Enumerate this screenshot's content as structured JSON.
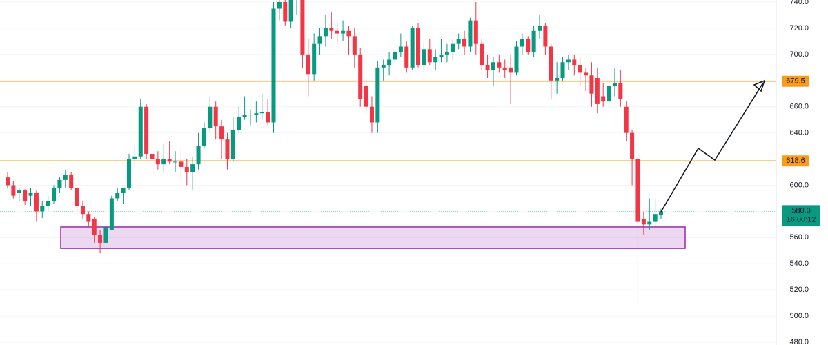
{
  "chart_data": {
    "type": "candlestick",
    "ylim": [
      477.9,
      741.6
    ],
    "yticks": [
      {
        "value": 480,
        "label": "480.0"
      },
      {
        "value": 500,
        "label": "500.0"
      },
      {
        "value": 520,
        "label": "520.0"
      },
      {
        "value": 540,
        "label": "540.0"
      },
      {
        "value": 560,
        "label": "560.0"
      },
      {
        "value": 580,
        "label": "580.0"
      },
      {
        "value": 600,
        "label": "600.0"
      },
      {
        "value": 620,
        "label": "620.0"
      },
      {
        "value": 640,
        "label": "640.0"
      },
      {
        "value": 660,
        "label": "660.0"
      },
      {
        "value": 680,
        "label": "680.0"
      },
      {
        "value": 700,
        "label": "700.0"
      },
      {
        "value": 720,
        "label": "720.0"
      },
      {
        "value": 740,
        "label": "740.0"
      }
    ],
    "up_color": "#089981",
    "down_color": "#f23645",
    "candles": [
      [
        606,
        610,
        598,
        600
      ],
      [
        600,
        603,
        590,
        592
      ],
      [
        594,
        598,
        588,
        596
      ],
      [
        596,
        597,
        585,
        588
      ],
      [
        592,
        598,
        584,
        594
      ],
      [
        594,
        596,
        572,
        580
      ],
      [
        580,
        588,
        575,
        584
      ],
      [
        584,
        592,
        580,
        588
      ],
      [
        588,
        600,
        586,
        598
      ],
      [
        598,
        606,
        594,
        604
      ],
      [
        604,
        612,
        598,
        608
      ],
      [
        608,
        610,
        596,
        598
      ],
      [
        598,
        600,
        578,
        584
      ],
      [
        584,
        588,
        574,
        578
      ],
      [
        578,
        580,
        568,
        572
      ],
      [
        574,
        576,
        556,
        562
      ],
      [
        562,
        566,
        548,
        556
      ],
      [
        556,
        570,
        544,
        568
      ],
      [
        566,
        592,
        566,
        590
      ],
      [
        590,
        598,
        588,
        594
      ],
      [
        594,
        598,
        586,
        598
      ],
      [
        598,
        624,
        596,
        620
      ],
      [
        620,
        630,
        614,
        622
      ],
      [
        622,
        666,
        620,
        660
      ],
      [
        660,
        662,
        620,
        624
      ],
      [
        624,
        630,
        610,
        620
      ],
      [
        620,
        626,
        612,
        616
      ],
      [
        616,
        632,
        610,
        620
      ],
      [
        620,
        634,
        616,
        618
      ],
      [
        618,
        626,
        610,
        618
      ],
      [
        618,
        628,
        604,
        614
      ],
      [
        614,
        620,
        600,
        610
      ],
      [
        610,
        622,
        596,
        616
      ],
      [
        616,
        640,
        612,
        630
      ],
      [
        630,
        648,
        628,
        644
      ],
      [
        644,
        668,
        640,
        660
      ],
      [
        660,
        664,
        635,
        645
      ],
      [
        645,
        650,
        620,
        635
      ],
      [
        635,
        640,
        612,
        620
      ],
      [
        620,
        652,
        618,
        642
      ],
      [
        642,
        660,
        640,
        652
      ],
      [
        652,
        668,
        650,
        654
      ],
      [
        654,
        658,
        646,
        654
      ],
      [
        654,
        664,
        648,
        655
      ],
      [
        655,
        670,
        650,
        656
      ],
      [
        656,
        666,
        646,
        648
      ],
      [
        648,
        740,
        640,
        735
      ],
      [
        735,
        742,
        726,
        740
      ],
      [
        740,
        744,
        722,
        725
      ],
      [
        725,
        748,
        720,
        742
      ],
      [
        742,
        750,
        730,
        745
      ],
      [
        745,
        750,
        690,
        700
      ],
      [
        700,
        712,
        668,
        685
      ],
      [
        685,
        716,
        680,
        708
      ],
      [
        708,
        720,
        700,
        714
      ],
      [
        714,
        730,
        706,
        720
      ],
      [
        720,
        732,
        712,
        718
      ],
      [
        718,
        724,
        708,
        716
      ],
      [
        716,
        726,
        710,
        718
      ],
      [
        718,
        722,
        700,
        714
      ],
      [
        714,
        720,
        690,
        700
      ],
      [
        700,
        705,
        660,
        666
      ],
      [
        676,
        682,
        655,
        660
      ],
      [
        660,
        668,
        640,
        648
      ],
      [
        648,
        695,
        640,
        690
      ],
      [
        690,
        696,
        680,
        692
      ],
      [
        692,
        702,
        684,
        696
      ],
      [
        696,
        710,
        690,
        702
      ],
      [
        702,
        716,
        698,
        706
      ],
      [
        706,
        710,
        686,
        690
      ],
      [
        690,
        722,
        688,
        720
      ],
      [
        720,
        724,
        690,
        692
      ],
      [
        692,
        708,
        686,
        704
      ],
      [
        704,
        712,
        692,
        694
      ],
      [
        694,
        704,
        688,
        698
      ],
      [
        698,
        712,
        694,
        700
      ],
      [
        700,
        708,
        694,
        702
      ],
      [
        702,
        712,
        696,
        708
      ],
      [
        708,
        716,
        704,
        712
      ],
      [
        712,
        718,
        700,
        706
      ],
      [
        706,
        728,
        702,
        726
      ],
      [
        726,
        740,
        700,
        708
      ],
      [
        708,
        712,
        688,
        692
      ],
      [
        692,
        700,
        682,
        688
      ],
      [
        688,
        698,
        676,
        694
      ],
      [
        694,
        700,
        686,
        690
      ],
      [
        690,
        696,
        682,
        688
      ],
      [
        690,
        700,
        662,
        686
      ],
      [
        686,
        710,
        684,
        706
      ],
      [
        706,
        716,
        700,
        712
      ],
      [
        712,
        714,
        700,
        702
      ],
      [
        702,
        722,
        698,
        718
      ],
      [
        718,
        730,
        712,
        722
      ],
      [
        722,
        724,
        700,
        706
      ],
      [
        706,
        708,
        666,
        680
      ],
      [
        680,
        694,
        670,
        682
      ],
      [
        682,
        698,
        680,
        694
      ],
      [
        694,
        700,
        688,
        696
      ],
      [
        696,
        700,
        684,
        692
      ],
      [
        692,
        698,
        676,
        686
      ],
      [
        686,
        690,
        672,
        684
      ],
      [
        684,
        694,
        660,
        670
      ],
      [
        682,
        690,
        655,
        662
      ],
      [
        668,
        678,
        660,
        664
      ],
      [
        664,
        680,
        660,
        676
      ],
      [
        676,
        690,
        668,
        678
      ],
      [
        678,
        688,
        660,
        666
      ],
      [
        660,
        664,
        634,
        640
      ],
      [
        640,
        642,
        600,
        620
      ],
      [
        620,
        622,
        508,
        572
      ],
      [
        574,
        580,
        562,
        570
      ],
      [
        570,
        590,
        566,
        572
      ],
      [
        572,
        590,
        568,
        578
      ],
      [
        577,
        582,
        574,
        580
      ]
    ],
    "levels": [
      {
        "value": 679.5,
        "color": "#f89c1c"
      },
      {
        "value": 618.6,
        "color": "#f89c1c"
      }
    ],
    "zone": {
      "low": 551.7,
      "high": 568.1,
      "color": "#9c27b0"
    },
    "current_price": {
      "value": 580,
      "label": "580.0",
      "countdown": "16:00:12",
      "color": "#089981"
    }
  }
}
